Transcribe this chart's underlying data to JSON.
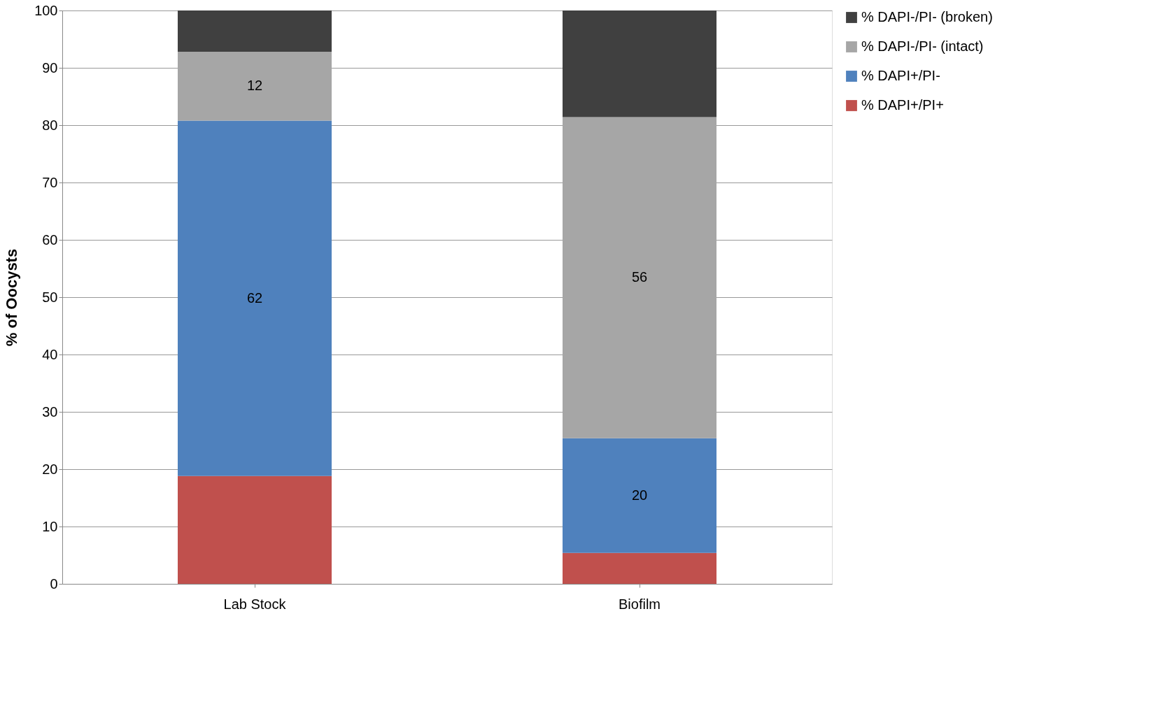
{
  "chart_data": {
    "type": "bar",
    "stacked": true,
    "ylabel": "% of Oocysts",
    "categories": [
      "Lab Stock",
      "Biofilm"
    ],
    "series": [
      {
        "name": "% DAPI+/PI+",
        "color": "#c0504d",
        "values": [
          18.8,
          5.4
        ],
        "value_labels": [
          null,
          null
        ]
      },
      {
        "name": "% DAPI+/PI-",
        "color": "#4f81bd",
        "values": [
          62,
          20
        ],
        "value_labels": [
          "62",
          "20"
        ]
      },
      {
        "name": "% DAPI-/PI- (intact)",
        "color": "#a6a6a6",
        "values": [
          12,
          56
        ],
        "value_labels": [
          "12",
          "56"
        ]
      },
      {
        "name": "% DAPI-/PI- (broken)",
        "color": "#404040",
        "values": [
          7.2,
          18.6
        ],
        "value_labels": [
          null,
          null
        ]
      }
    ],
    "ylim": [
      0,
      100
    ],
    "yticks": [
      0,
      10,
      20,
      30,
      40,
      50,
      60,
      70,
      80,
      90,
      100
    ],
    "grid": "y",
    "legend": "right"
  }
}
